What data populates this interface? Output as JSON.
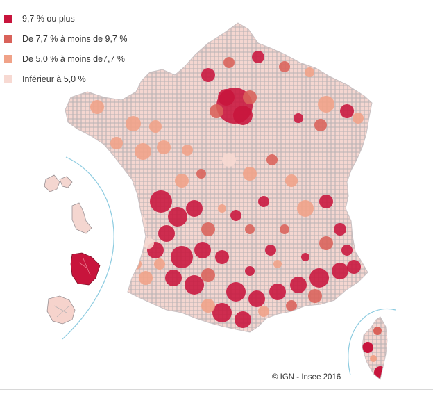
{
  "legend": {
    "items": [
      {
        "label": "9,7 % ou plus",
        "color": "#c8143c"
      },
      {
        "label": "De 7,7 % à moins de 9,7 %",
        "color": "#d9625a"
      },
      {
        "label": "De 5,0 % à moins de7,7 %",
        "color": "#f0a288"
      },
      {
        "label": "Inférieur à 5,0 %",
        "color": "#f7d9d2"
      }
    ]
  },
  "credit": "© IGN - Insee 2016",
  "colors": {
    "gray_mesh": "#b9b3b5",
    "inset_circle": "#8ccbe0"
  }
}
